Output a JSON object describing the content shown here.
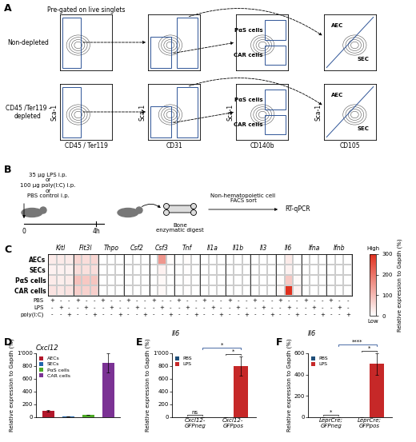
{
  "panel_labels": [
    "A",
    "B",
    "C",
    "D",
    "E",
    "F"
  ],
  "gating": {
    "row_labels": [
      "Non-depleted",
      "CD45 /Ter119 -\ndepleted"
    ],
    "y_label": "Sca-1",
    "x_labels": [
      "CD45 / Ter119",
      "CD31",
      "CD140b",
      "CD105"
    ],
    "note": "Pre-gated on live singlets",
    "gates": [
      "PαS cells",
      "CAR cells"
    ],
    "endothelial": [
      "AEC",
      "SEC"
    ]
  },
  "protocol": {
    "treatments": "35 μg LPS i.p.\nor\n100 μg poly(I:C) i.p.\nor\nPBS control i.p.",
    "times": [
      "0",
      "4h"
    ],
    "steps": [
      "Bone\nenzymatic digest",
      "Non-hematopoietic cell\nFACS sort",
      "RT-qPCR"
    ]
  },
  "chart_data": [
    {
      "type": "heatmap",
      "rows": [
        "AECs",
        "SECs",
        "PαS cells",
        "CAR cells"
      ],
      "genes": [
        "Kitl",
        "Flt3l",
        "Thpo",
        "Csf2",
        "Csf3",
        "Tnf",
        "Il1a",
        "Il1b",
        "Il3",
        "Il6",
        "Ifna",
        "Ifnb"
      ],
      "condition_rows": [
        {
          "name": "PBS",
          "signs": [
            "+",
            "-",
            "-"
          ]
        },
        {
          "name": "LPS",
          "signs": [
            "-",
            "+",
            "-"
          ]
        },
        {
          "name": "poly(I:C)",
          "signs": [
            "-",
            "-",
            "+"
          ]
        }
      ],
      "cells": [
        [
          30,
          30,
          30,
          60,
          50,
          60,
          0,
          0,
          0,
          0,
          0,
          0,
          0,
          150,
          5,
          0,
          5,
          0,
          0,
          0,
          0,
          0,
          0,
          0,
          0,
          0,
          0,
          0,
          30,
          0,
          0,
          0,
          0,
          0,
          0,
          0
        ],
        [
          20,
          20,
          20,
          50,
          45,
          50,
          0,
          0,
          0,
          0,
          0,
          0,
          0,
          20,
          0,
          0,
          3,
          0,
          0,
          0,
          0,
          0,
          0,
          0,
          0,
          0,
          0,
          0,
          20,
          0,
          0,
          0,
          0,
          0,
          0,
          0
        ],
        [
          30,
          25,
          30,
          90,
          80,
          85,
          0,
          0,
          0,
          0,
          0,
          0,
          0,
          10,
          0,
          0,
          3,
          0,
          0,
          0,
          0,
          0,
          0,
          0,
          0,
          0,
          0,
          5,
          80,
          10,
          0,
          0,
          0,
          0,
          0,
          0
        ],
        [
          40,
          35,
          40,
          70,
          65,
          70,
          0,
          0,
          0,
          0,
          0,
          0,
          0,
          10,
          0,
          0,
          3,
          0,
          0,
          0,
          0,
          0,
          0,
          0,
          0,
          0,
          0,
          10,
          300,
          20,
          0,
          0,
          0,
          0,
          0,
          0
        ]
      ],
      "color": "#e0301e",
      "colorbar": {
        "label": "Relative expression to Gapdh (%)",
        "range": [
          0,
          300
        ],
        "ticks": [
          0,
          100,
          200,
          300
        ],
        "high": "High",
        "low": "Low"
      }
    },
    {
      "type": "bar",
      "title": "Cxcl12",
      "categories": [
        "AECs",
        "SECs",
        "PαS cells",
        "CAR cells"
      ],
      "values": [
        100,
        10,
        40,
        850
      ],
      "errors": [
        10,
        1,
        3,
        150
      ],
      "colors": [
        "#b2182b",
        "#2166ac",
        "#4dac26",
        "#7b3294"
      ],
      "y_label": "Relative expression to Gapdh (%)",
      "ylim": [
        0,
        1000
      ],
      "yticks": [
        0,
        200,
        400,
        600,
        800,
        {
          "value": 1000,
          "label": "1'000"
        }
      ],
      "legend": "upper left",
      "tick_labels": "y",
      "grid": false
    },
    {
      "type": "grouped_bar",
      "title": "Il6",
      "categories": [
        "Cxcl12-\nGFPneg",
        "Cxcl12-\nGFPpos"
      ],
      "series": [
        {
          "name": "PBS",
          "color": "#1f4e79",
          "values": [
            2,
            3
          ],
          "errors": [
            0.5,
            1
          ]
        },
        {
          "name": "LPS",
          "color": "#c62828",
          "values": [
            2,
            800
          ],
          "errors": [
            1.5,
            150
          ]
        }
      ],
      "y_label": "Relative expression to Gapdh (%)",
      "ylim": [
        0,
        1000
      ],
      "yticks": [
        0,
        200,
        400,
        600,
        800,
        {
          "value": 1000,
          "label": "1'000"
        }
      ],
      "significance": [
        {
          "category": 0,
          "text": "ns"
        },
        {
          "category": 1,
          "text": "*"
        },
        {
          "series": "LPS",
          "text": "*"
        }
      ],
      "legend": "upper left",
      "grid": false
    },
    {
      "type": "grouped_bar",
      "title": "Il6",
      "categories": [
        "LeprCre;\nGFPneg",
        "LeprCre;\nGFPpos"
      ],
      "series": [
        {
          "name": "PBS",
          "color": "#1f4e79",
          "values": [
            0.2,
            2
          ],
          "errors": [
            0.1,
            1
          ]
        },
        {
          "name": "LPS",
          "color": "#c62828",
          "values": [
            1,
            500
          ],
          "errors": [
            0.5,
            100
          ]
        }
      ],
      "y_label": "Relative expression to Gapdh (%)",
      "ylim": [
        0,
        600
      ],
      "yticks": [
        0,
        200,
        400,
        600
      ],
      "significance": [
        {
          "category": 0,
          "text": "*"
        },
        {
          "category": 1,
          "text": "*"
        },
        {
          "series": "LPS",
          "text": "****"
        }
      ],
      "legend": "upper left",
      "grid": false
    }
  ]
}
